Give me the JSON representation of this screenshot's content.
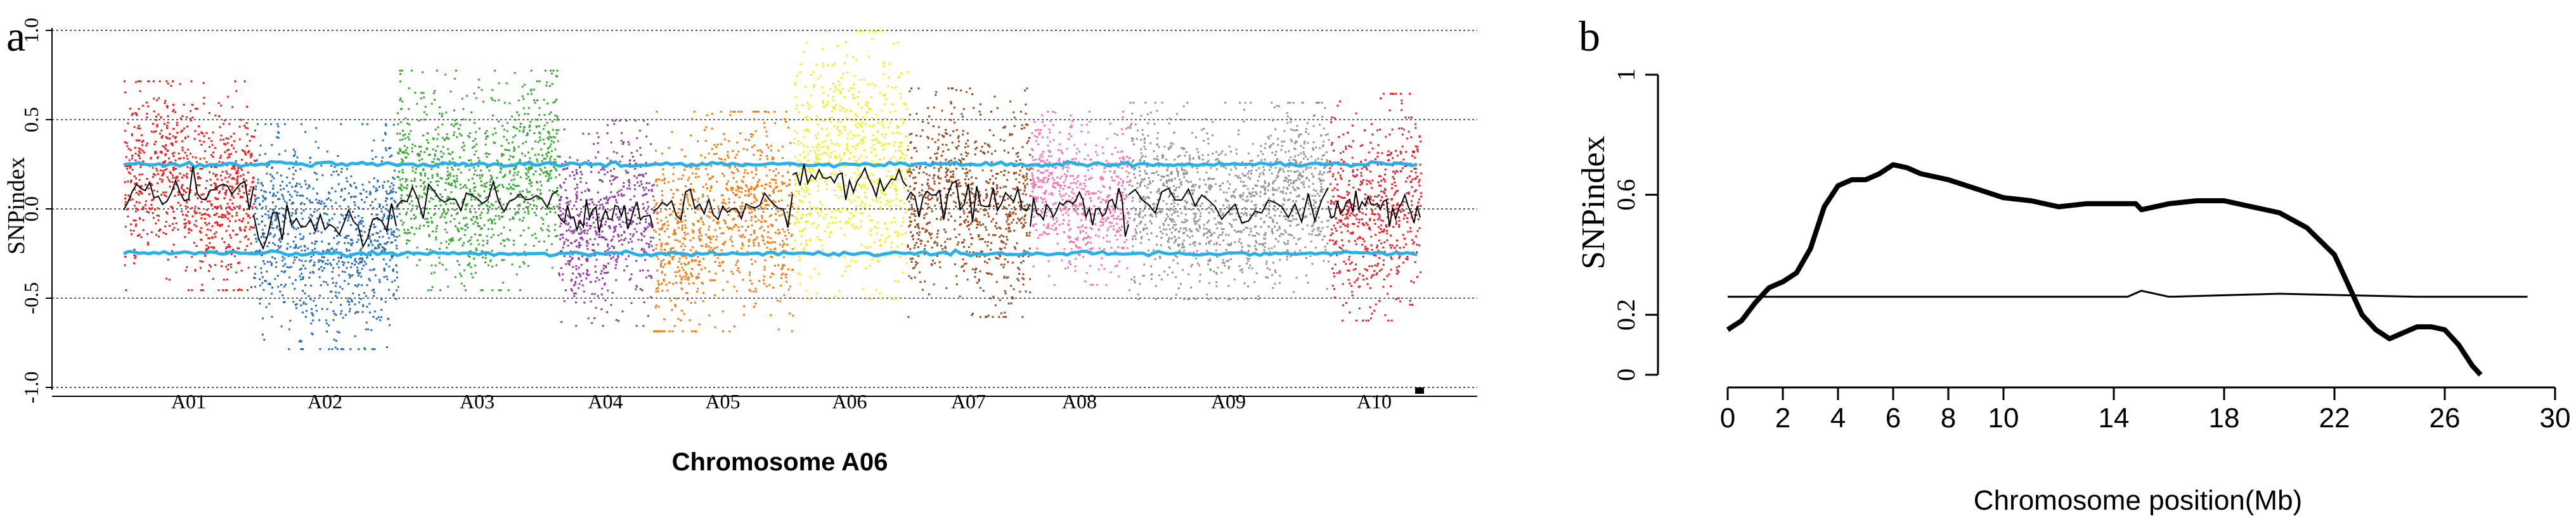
{
  "panel_a_label": "a",
  "panel_b_label": "b",
  "colors": {
    "A01": "#ee1c1c",
    "A02": "#2b6cb8",
    "A03": "#3aa635",
    "A04": "#8e3ea3",
    "A05": "#f57a10",
    "A06": "#f4ee1c",
    "A07": "#9a4a1e",
    "A08": "#f276b5",
    "A09": "#959595",
    "A10": "#e8202a",
    "threshold": "#29b0e6",
    "mean": "#000000"
  },
  "chart_data": [
    {
      "type": "scatter",
      "title": "",
      "xlabel": "Chromosome A06",
      "ylabel": "SNPindex",
      "ylim": [
        -1.0,
        1.0
      ],
      "yticks": [
        "-1.0",
        "-0.5",
        "0.0",
        "0.5",
        "1.0"
      ],
      "reference_lines": [
        -1.0,
        -0.5,
        0.0,
        0.5,
        1.0
      ],
      "grid": false,
      "legend": "none",
      "categories": [
        "A01",
        "A02",
        "A03",
        "A04",
        "A05",
        "A06",
        "A07",
        "A08",
        "A09",
        "A10"
      ],
      "series": [
        {
          "name": "A01",
          "min": -0.45,
          "max": 0.72,
          "mean": 0.1
        },
        {
          "name": "A02",
          "min": -0.78,
          "max": 0.48,
          "mean": -0.1
        },
        {
          "name": "A03",
          "min": -0.45,
          "max": 0.78,
          "mean": 0.05
        },
        {
          "name": "A04",
          "min": -0.65,
          "max": 0.5,
          "mean": -0.05
        },
        {
          "name": "A05",
          "min": -0.68,
          "max": 0.55,
          "mean": 0.0
        },
        {
          "name": "A06",
          "min": -0.5,
          "max": 1.0,
          "mean": 0.15
        },
        {
          "name": "A07",
          "min": -0.6,
          "max": 0.68,
          "mean": 0.05
        },
        {
          "name": "A08",
          "min": -0.42,
          "max": 0.55,
          "mean": 0.0
        },
        {
          "name": "A09",
          "min": -0.5,
          "max": 0.6,
          "mean": 0.02
        },
        {
          "name": "A10",
          "min": -0.62,
          "max": 0.65,
          "mean": 0.0
        }
      ],
      "threshold_upper": 0.25,
      "threshold_lower": -0.25
    },
    {
      "type": "line",
      "title": "",
      "xlabel": "Chromosome position(Mb)",
      "ylabel": "SNPindex",
      "xlim": [
        0,
        30
      ],
      "ylim": [
        0,
        1
      ],
      "xticks": [
        "0",
        "2",
        "4",
        "6",
        "8",
        "10",
        "14",
        "18",
        "22",
        "26",
        "30"
      ],
      "yticks": [
        "0",
        "0.2",
        "0.6",
        "1"
      ],
      "grid": false,
      "legend": "none",
      "series": [
        {
          "name": "",
          "x": [
            0,
            0.5,
            1,
            1.5,
            2,
            2.5,
            3,
            3.5,
            4,
            4.5,
            5,
            5.5,
            6,
            6.5,
            7,
            8,
            9,
            10,
            11,
            12,
            13,
            14,
            14.8,
            15,
            16,
            17,
            18,
            19,
            20,
            21,
            22,
            22.5,
            23,
            23.5,
            24,
            24.5,
            25,
            25.5,
            26,
            26.5,
            27,
            27.3
          ],
          "y": [
            0.15,
            0.18,
            0.24,
            0.29,
            0.31,
            0.34,
            0.42,
            0.56,
            0.63,
            0.65,
            0.65,
            0.67,
            0.7,
            0.69,
            0.67,
            0.65,
            0.62,
            0.59,
            0.58,
            0.56,
            0.57,
            0.57,
            0.57,
            0.55,
            0.57,
            0.58,
            0.58,
            0.56,
            0.54,
            0.49,
            0.4,
            0.3,
            0.2,
            0.15,
            0.12,
            0.14,
            0.16,
            0.16,
            0.15,
            0.1,
            0.03,
            0.0
          ]
        },
        {
          "name": "",
          "x": [
            0,
            5,
            10,
            14.5,
            15,
            16,
            20,
            25,
            29
          ],
          "y": [
            0.26,
            0.26,
            0.26,
            0.26,
            0.28,
            0.26,
            0.27,
            0.26,
            0.26
          ]
        }
      ]
    }
  ]
}
